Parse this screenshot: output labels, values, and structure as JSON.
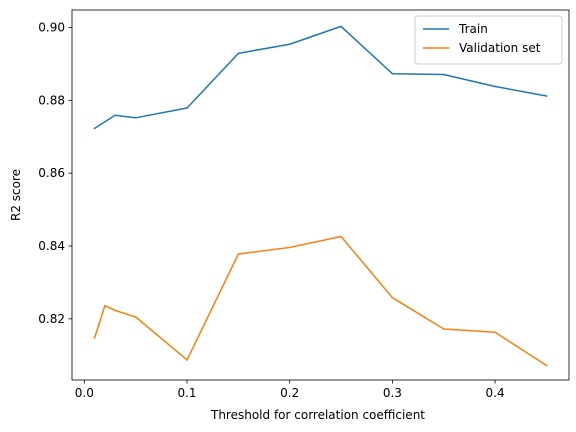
{
  "chart_data": {
    "type": "line",
    "title": "",
    "xlabel": "Threshold for correlation coefficient",
    "ylabel": "R2 score",
    "xlim": [
      -0.012,
      0.472
    ],
    "ylim": [
      0.8032,
      0.9048
    ],
    "x_ticks": [
      0.0,
      0.1,
      0.2,
      0.3,
      0.4
    ],
    "x_tick_labels": [
      "0.0",
      "0.1",
      "0.2",
      "0.3",
      "0.4"
    ],
    "y_ticks": [
      0.82,
      0.84,
      0.86,
      0.88,
      0.9
    ],
    "y_tick_labels": [
      "0.82",
      "0.84",
      "0.86",
      "0.88",
      "0.90"
    ],
    "grid": false,
    "legend_position": "top-right",
    "series": [
      {
        "name": "Train",
        "color": "#1f77b4",
        "x": [
          0.01,
          0.03,
          0.05,
          0.1,
          0.15,
          0.2,
          0.25,
          0.3,
          0.35,
          0.4,
          0.45
        ],
        "y": [
          0.8723,
          0.8759,
          0.8752,
          0.8779,
          0.8929,
          0.8954,
          0.9003,
          0.8873,
          0.8871,
          0.8838,
          0.8812
        ]
      },
      {
        "name": "Validation set",
        "color": "#ff7f0e",
        "x": [
          0.01,
          0.02,
          0.03,
          0.05,
          0.1,
          0.15,
          0.2,
          0.25,
          0.3,
          0.35,
          0.4,
          0.45
        ],
        "y": [
          0.8148,
          0.8236,
          0.8223,
          0.8205,
          0.8087,
          0.8378,
          0.8396,
          0.8426,
          0.8258,
          0.8172,
          0.8163,
          0.8072
        ]
      }
    ]
  }
}
